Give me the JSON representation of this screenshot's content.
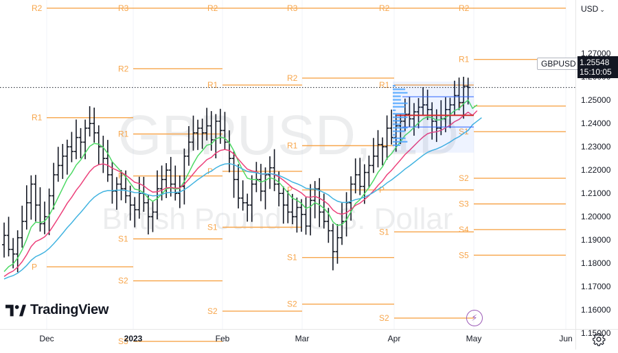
{
  "header": {
    "currency": "USD"
  },
  "symbol": {
    "ticker": "GBPUSD",
    "price": "1.25548",
    "countdown": "15:10:05"
  },
  "watermark": {
    "ticker": "GBPUSD, 1D",
    "name": "British Pound / U.S. Dollar"
  },
  "branding": {
    "logo_text": "TradingView"
  },
  "colors": {
    "pivot": "#f7a54a",
    "bull_bar": "#131722",
    "ma_green": "#4cd964",
    "ma_red": "#ec407a",
    "ma_blue": "#40b3e0",
    "profile": "#2962ff"
  },
  "icons": {
    "settings": "gear-icon",
    "alert": "bolt-icon"
  },
  "chart_data": {
    "type": "ohlc",
    "ylim": [
      1.143,
      1.293
    ],
    "price_ticks": [
      "1.27000",
      "1.26000",
      "1.25000",
      "1.24000",
      "1.23000",
      "1.22000",
      "1.21000",
      "1.20000",
      "1.19000",
      "1.18000",
      "1.17000",
      "1.16000",
      "1.15000"
    ],
    "time_ticks": [
      "Dec",
      "2023",
      "Feb",
      "Mar",
      "Apr",
      "May",
      "Jun"
    ],
    "last_price": 1.25548,
    "series_close": [
      1.192,
      1.186,
      1.184,
      1.191,
      1.198,
      1.206,
      1.214,
      1.205,
      1.197,
      1.2,
      1.209,
      1.218,
      1.222,
      1.226,
      1.23,
      1.228,
      1.234,
      1.232,
      1.238,
      1.24,
      1.236,
      1.23,
      1.225,
      1.218,
      1.211,
      1.214,
      1.212,
      1.209,
      1.205,
      1.203,
      1.21,
      1.206,
      1.2,
      1.202,
      1.212,
      1.216,
      1.22,
      1.214,
      1.21,
      1.213,
      1.226,
      1.232,
      1.236,
      1.238,
      1.236,
      1.239,
      1.233,
      1.241,
      1.237,
      1.232,
      1.225,
      1.216,
      1.208,
      1.206,
      1.205,
      1.214,
      1.216,
      1.211,
      1.218,
      1.221,
      1.214,
      1.21,
      1.205,
      1.202,
      1.2,
      1.204,
      1.201,
      1.196,
      1.207,
      1.212,
      1.202,
      1.198,
      1.194,
      1.185,
      1.191,
      1.198,
      1.206,
      1.214,
      1.218,
      1.213,
      1.219,
      1.222,
      1.226,
      1.231,
      1.23,
      1.238,
      1.234,
      1.239,
      1.241,
      1.244,
      1.242,
      1.245,
      1.247,
      1.248,
      1.246,
      1.241,
      1.238,
      1.242,
      1.246,
      1.248,
      1.252,
      1.249,
      1.256,
      1.2555
    ],
    "pivot_levels": [
      {
        "label": "R2",
        "price": 1.2895,
        "x0": 68,
        "x1": 194
      },
      {
        "label": "R1",
        "price": 1.2425,
        "x0": 68,
        "x1": 194
      },
      {
        "label": "P",
        "price": 1.1785,
        "x0": 68,
        "x1": 194
      },
      {
        "label": "R3",
        "price": 1.2895,
        "x0": 194,
        "x1": 324
      },
      {
        "label": "R2",
        "price": 1.2635,
        "x0": 194,
        "x1": 324
      },
      {
        "label": "R1",
        "price": 1.2355,
        "x0": 194,
        "x1": 324
      },
      {
        "label": "P",
        "price": 1.2175,
        "x0": 194,
        "x1": 324
      },
      {
        "label": "S1",
        "price": 1.1905,
        "x0": 194,
        "x1": 324
      },
      {
        "label": "S2",
        "price": 1.1725,
        "x0": 194,
        "x1": 324
      },
      {
        "label": "S3",
        "price": 1.1465,
        "x0": 194,
        "x1": 324
      },
      {
        "label": "R2",
        "price": 1.2895,
        "x0": 324,
        "x1": 440
      },
      {
        "label": "R1",
        "price": 1.2565,
        "x0": 324,
        "x1": 440
      },
      {
        "label": "P",
        "price": 1.2195,
        "x0": 324,
        "x1": 440
      },
      {
        "label": "S1",
        "price": 1.1955,
        "x0": 324,
        "x1": 440
      },
      {
        "label": "S2",
        "price": 1.1595,
        "x0": 324,
        "x1": 440
      },
      {
        "label": "R3",
        "price": 1.2895,
        "x0": 440,
        "x1": 574
      },
      {
        "label": "R2",
        "price": 1.2595,
        "x0": 440,
        "x1": 574
      },
      {
        "label": "R1",
        "price": 1.2305,
        "x0": 440,
        "x1": 574
      },
      {
        "label": "P",
        "price": 1.2115,
        "x0": 440,
        "x1": 574
      },
      {
        "label": "S1",
        "price": 1.1825,
        "x0": 440,
        "x1": 574
      },
      {
        "label": "S2",
        "price": 1.1625,
        "x0": 440,
        "x1": 574
      },
      {
        "label": "R2",
        "price": 1.2895,
        "x0": 574,
        "x1": 690
      },
      {
        "label": "R1",
        "price": 1.2565,
        "x0": 574,
        "x1": 690
      },
      {
        "label": "P",
        "price": 1.2115,
        "x0": 574,
        "x1": 690
      },
      {
        "label": "S1",
        "price": 1.1935,
        "x0": 574,
        "x1": 690
      },
      {
        "label": "S2",
        "price": 1.1565,
        "x0": 574,
        "x1": 690
      },
      {
        "label": "R2",
        "price": 1.2895,
        "x0": 690,
        "x1": 824
      },
      {
        "label": "R1",
        "price": 1.2675,
        "x0": 690,
        "x1": 824
      },
      {
        "label": "P",
        "price": 1.2475,
        "x0": 690,
        "x1": 824
      },
      {
        "label": "S1",
        "price": 1.2365,
        "x0": 690,
        "x1": 824
      },
      {
        "label": "S2",
        "price": 1.2165,
        "x0": 690,
        "x1": 824
      },
      {
        "label": "S3",
        "price": 1.2055,
        "x0": 690,
        "x1": 824
      },
      {
        "label": "S4",
        "price": 1.1945,
        "x0": 690,
        "x1": 824
      },
      {
        "label": "S5",
        "price": 1.1835,
        "x0": 690,
        "x1": 824
      }
    ]
  }
}
